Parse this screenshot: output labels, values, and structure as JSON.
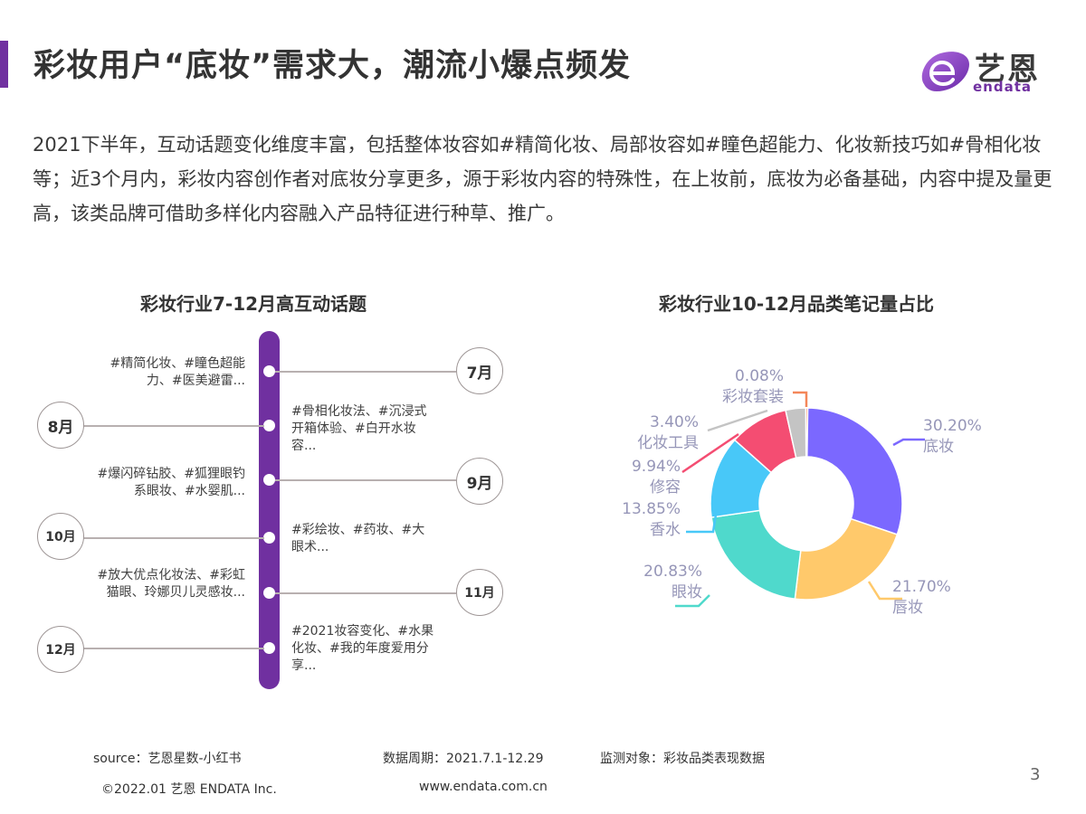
{
  "header": {
    "title": "彩妆用户“底妆”需求大，潮流小爆点频发",
    "logo": {
      "cn": "艺恩",
      "en": "endata"
    }
  },
  "intro": "2021下半年，互动话题变化维度丰富，包括整体妆容如#精简化妆、局部妆容如#瞳色超能力、化妆新技巧如#骨相化妆等；近3个月内，彩妆内容创作者对底妆分享更多，源于彩妆内容的特殊性，在上妆前，底妆为必备基础，内容中提及量更高，该类品牌可借助多样化内容融入产品特征进行种草、推广。",
  "timeline": {
    "title": "彩妆行业7-12月高互动话题",
    "accent": "#7030a0",
    "items": [
      {
        "month": "7月",
        "topics": "#精简化妆、#瞳色超能力、#医美避雷...",
        "bubble_side": "right",
        "text_side": "left"
      },
      {
        "month": "8月",
        "topics": "#骨相化妆法、#沉浸式开箱体验、#白开水妆容...",
        "bubble_side": "left",
        "text_side": "right"
      },
      {
        "month": "9月",
        "topics": "#爆闪碎钻胶、#狐狸眼钓系眼妆、#水婴肌...",
        "bubble_side": "right",
        "text_side": "left"
      },
      {
        "month": "10月",
        "topics": "#彩绘妆、#药妆、#大眼术...",
        "bubble_side": "left",
        "text_side": "right"
      },
      {
        "month": "11月",
        "topics": "#放大优点化妆法、#彩虹猫眼、玲娜贝儿灵感妆...",
        "bubble_side": "right",
        "text_side": "left"
      },
      {
        "month": "12月",
        "topics": "#2021妆容变化、#水果化妆、#我的年度爱用分享...",
        "bubble_side": "left",
        "text_side": "right"
      }
    ]
  },
  "chart_data": {
    "type": "pie",
    "variant": "donut",
    "title": "彩妆行业10-12月品类笔记量占比",
    "categories": [
      "底妆",
      "唇妆",
      "眼妆",
      "香水",
      "修容",
      "化妆工具",
      "彩妆套装"
    ],
    "values": [
      30.2,
      21.7,
      20.83,
      13.85,
      9.94,
      3.4,
      0.08
    ],
    "labels": [
      "30.20%",
      "21.70%",
      "20.83%",
      "13.85%",
      "9.94%",
      "3.40%",
      "0.08%"
    ],
    "colors": [
      "#7b68ff",
      "#ffc96b",
      "#4fd9cc",
      "#48c8f8",
      "#f44d72",
      "#c4c4c4",
      "#f4875a"
    ],
    "unit": "%",
    "start_angle": "12 o'clock, clockwise",
    "legend": "none (leader-line labels)"
  },
  "footer": {
    "source": "source：艺恩星数-小红书",
    "period": "数据周期：2021.7.1-12.29",
    "subject": "监测对象：彩妆品类表现数据",
    "copyright": "©2022.01 艺恩 ENDATA Inc.",
    "website": "www.endata.com.cn",
    "page_number": "3"
  }
}
